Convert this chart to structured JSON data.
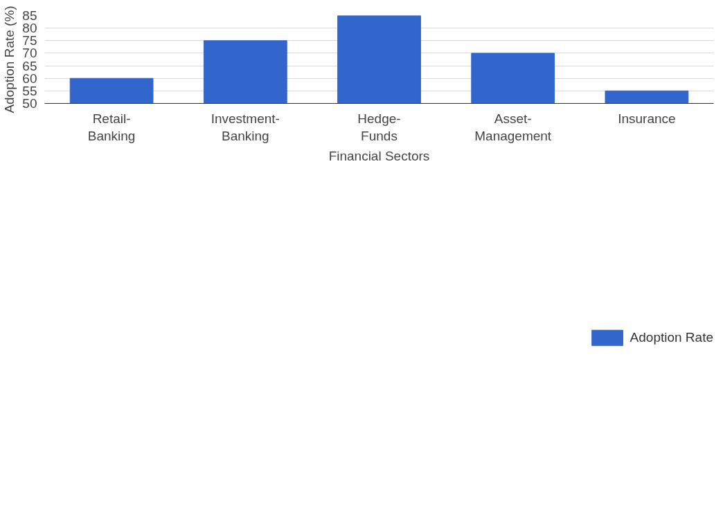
{
  "chart_data": {
    "type": "bar",
    "xlabel": "Financial Sectors",
    "ylabel": "Adoption Rate (%)",
    "categories": [
      "Retail-\nBanking",
      "Investment-\nBanking",
      "Hedge-\nFunds",
      "Asset-\nManagement",
      "Insurance"
    ],
    "series": [
      {
        "name": "Adoption Rate",
        "color": "#3366cc",
        "values": [
          60,
          75,
          85,
          70,
          55
        ]
      }
    ],
    "ylim": [
      50,
      85
    ],
    "yticks": [
      50,
      55,
      60,
      65,
      70,
      75,
      80,
      85
    ],
    "grid": "y",
    "legend": "bottom"
  }
}
